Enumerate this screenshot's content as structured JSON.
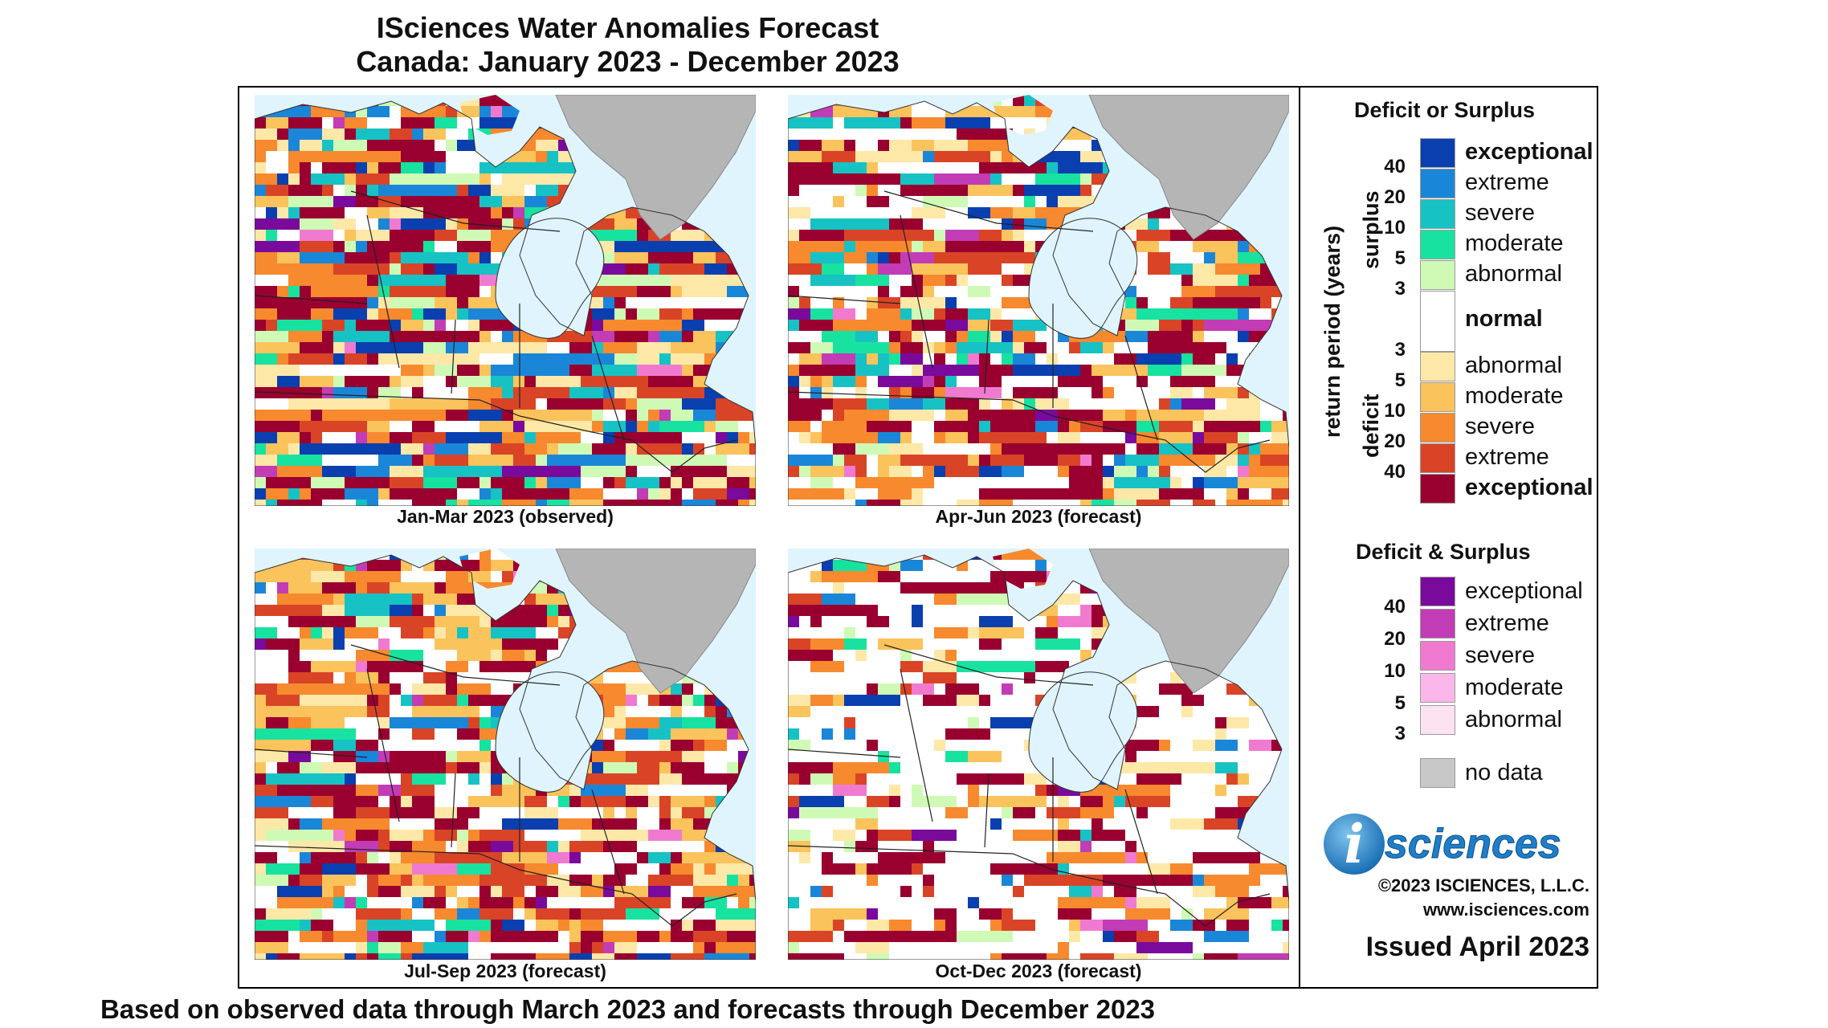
{
  "header": {
    "title_line1": "ISciences Water Anomalies Forecast",
    "title_line2": "Canada: January 2023 - December 2023"
  },
  "footer": "Based on observed data through March 2023 and forecasts through December 2023",
  "panels": [
    {
      "caption": "Jan-Mar 2023 (observed)"
    },
    {
      "caption": "Apr-Jun 2023 (forecast)"
    },
    {
      "caption": "Jul-Sep 2023 (forecast)"
    },
    {
      "caption": "Oct-Dec 2023 (forecast)"
    }
  ],
  "legend": {
    "section1_title": "Deficit or Surplus",
    "axis_label": "return period (years)",
    "surplus_label": "surplus",
    "deficit_label": "deficit",
    "surplus": [
      {
        "label": "exceptional",
        "color": "#0a3fb0",
        "bold": true
      },
      {
        "label": "extreme",
        "color": "#1a86d8"
      },
      {
        "label": "severe",
        "color": "#17c2c4"
      },
      {
        "label": "moderate",
        "color": "#18e2a0"
      },
      {
        "label": "abnormal",
        "color": "#cffab5"
      }
    ],
    "surplus_ticks": [
      "40",
      "20",
      "10",
      "5",
      "3"
    ],
    "normal": {
      "label": "normal",
      "color": "#ffffff"
    },
    "deficit": [
      {
        "label": "abnormal",
        "color": "#fde8a8"
      },
      {
        "label": "moderate",
        "color": "#fbc35c"
      },
      {
        "label": "severe",
        "color": "#f7892e"
      },
      {
        "label": "extreme",
        "color": "#d94427"
      },
      {
        "label": "exceptional",
        "color": "#990030",
        "bold": true
      }
    ],
    "deficit_ticks": [
      "3",
      "5",
      "10",
      "20",
      "40"
    ],
    "section2_title": "Deficit & Surplus",
    "both": [
      {
        "label": "exceptional",
        "color": "#7a0a9c"
      },
      {
        "label": "extreme",
        "color": "#c23cb5"
      },
      {
        "label": "severe",
        "color": "#f07ad0"
      },
      {
        "label": "moderate",
        "color": "#fbb7e9"
      },
      {
        "label": "abnormal",
        "color": "#fde2f2"
      }
    ],
    "both_ticks": [
      "40",
      "20",
      "10",
      "5",
      "3"
    ],
    "nodata": {
      "label": "no data",
      "color": "#c8c8c8"
    }
  },
  "branding": {
    "logo_i": "i",
    "logo_text": "sciences",
    "copyright": "©2023 ISCIENCES, L.L.C.",
    "website": "www.isciences.com",
    "issued": "Issued April 2023"
  }
}
